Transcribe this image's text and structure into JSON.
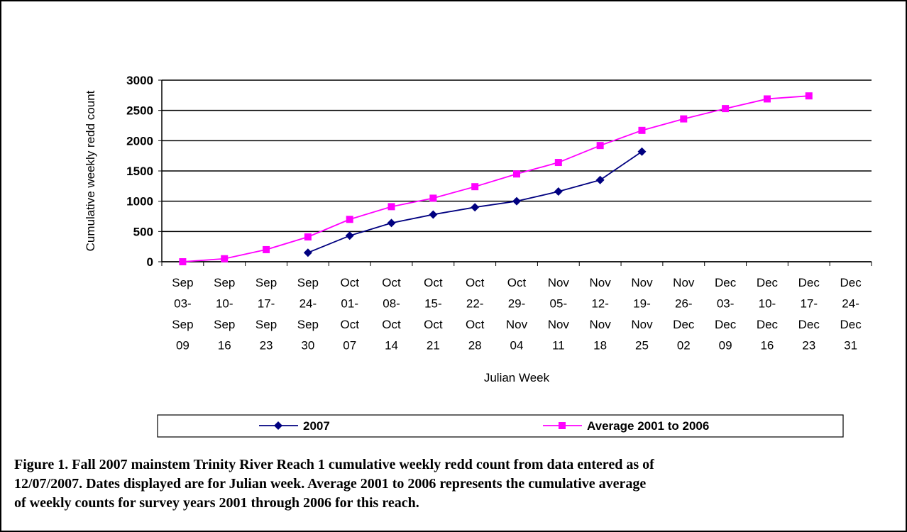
{
  "chart_data": {
    "type": "line",
    "y_label": "Cumulative weekly redd count",
    "x_label": "Julian Week",
    "categories": [
      "Sep\n03-\nSep\n09",
      "Sep\n10-\nSep\n16",
      "Sep\n17-\nSep\n23",
      "Sep\n24-\nSep\n30",
      "Oct\n01-\nOct\n07",
      "Oct\n08-\nOct\n14",
      "Oct\n15-\nOct\n21",
      "Oct\n22-\nOct\n28",
      "Oct\n29-\nNov\n04",
      "Nov\n05-\nNov\n11",
      "Nov\n12-\nNov\n18",
      "Nov\n19-\nNov\n25",
      "Nov\n26-\nDec\n02",
      "Dec\n03-\nDec\n09",
      "Dec\n10-\nDec\n16",
      "Dec\n17-\nDec\n23",
      "Dec\n24-\nDec\n31"
    ],
    "series": [
      {
        "name": "2007",
        "color": "#000080",
        "marker": "diamond",
        "values": [
          null,
          null,
          null,
          150,
          430,
          640,
          780,
          900,
          1000,
          1160,
          1350,
          1820,
          null,
          null,
          null,
          null,
          null
        ]
      },
      {
        "name": "Average 2001 to 2006",
        "color": "#ff00ff",
        "marker": "square",
        "values": [
          0,
          50,
          200,
          410,
          700,
          910,
          1050,
          1240,
          1450,
          1640,
          1920,
          2170,
          2360,
          2530,
          2690,
          2740,
          null
        ]
      }
    ],
    "ylim": [
      0,
      3000
    ],
    "yticks": [
      0,
      500,
      1000,
      1500,
      2000,
      2500,
      3000
    ],
    "grid": true
  },
  "caption": [
    "Figure 1.  Fall 2007 mainstem Trinity River Reach 1 cumulative weekly redd count from data entered as of",
    "12/07/2007.  Dates displayed are for Julian week.  Average 2001 to 2006 represents the cumulative average",
    "of weekly counts for survey years 2001 through 2006 for this reach."
  ]
}
